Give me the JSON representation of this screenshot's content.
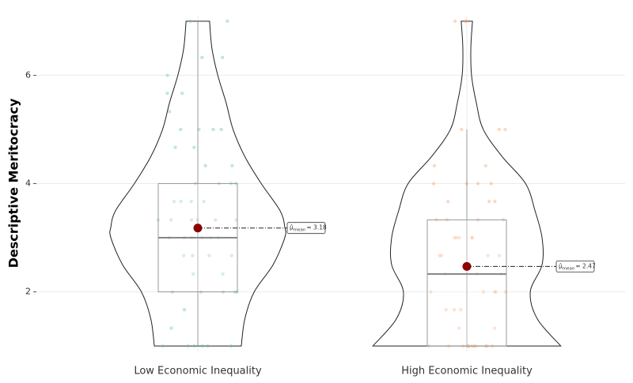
{
  "chart_data": {
    "type": "violin",
    "ylabel": "Descriptive Meritocracy",
    "ylim": [
      0.9,
      7.1
    ],
    "yticks": [
      2,
      4,
      6
    ],
    "grid": true,
    "categories": [
      "Low Economic Inequality",
      "High Economic Inequality"
    ],
    "mean_symbol": "μ̂",
    "mean_subscript": "mean",
    "groups": [
      {
        "color": "#66c2a5",
        "points": [
          1,
          1,
          1,
          1,
          1,
          1,
          1.33,
          1.67,
          2,
          2,
          2,
          2,
          2,
          2.33,
          2.33,
          2.67,
          2.67,
          2.67,
          2.67,
          3,
          3,
          3,
          3,
          3,
          3,
          3.33,
          3.33,
          3.33,
          3.33,
          3.33,
          3.33,
          3.67,
          3.67,
          3.67,
          3.67,
          4,
          4,
          4,
          4,
          4.33,
          4.33,
          4.67,
          4.67,
          5,
          5,
          5,
          5,
          5.33,
          5.67,
          5.67,
          6,
          6.33,
          6.33,
          7,
          7
        ],
        "box": {
          "min": 1,
          "q1": 2,
          "median": 3,
          "q3": 4,
          "max": 7
        },
        "mean": 3.18,
        "mean_label": "= 3.18",
        "violin": {
          "y": [
            1,
            1.5,
            2,
            2.5,
            3,
            3.2,
            3.5,
            4,
            4.5,
            5,
            5.5,
            6,
            6.5,
            7
          ],
          "density": [
            0.185,
            0.2,
            0.24,
            0.32,
            0.37,
            0.37,
            0.35,
            0.27,
            0.2,
            0.15,
            0.12,
            0.085,
            0.06,
            0.05
          ]
        }
      },
      {
        "color": "#f4a06a",
        "points": [
          1,
          1,
          1,
          1,
          1,
          1,
          1,
          1,
          1,
          1,
          1,
          1,
          1.33,
          1.33,
          1.67,
          1.67,
          1.67,
          2,
          2,
          2,
          2,
          2,
          2.33,
          2.33,
          2.33,
          2.67,
          2.67,
          2.67,
          2.67,
          3,
          3,
          3,
          3,
          3,
          3.33,
          3.33,
          3.33,
          3.33,
          3.67,
          3.67,
          3.67,
          4,
          4,
          4,
          4,
          4.33,
          4.33,
          5,
          5,
          5,
          7,
          7,
          7
        ],
        "box": {
          "min": 1,
          "q1": 1,
          "median": 2.33,
          "q3": 3.33,
          "max": 5
        },
        "mean": 2.47,
        "mean_label": "= 2.47",
        "violin": {
          "y": [
            1,
            1.5,
            2,
            2.5,
            3,
            3.5,
            4,
            4.5,
            5,
            5.5,
            6,
            6.5,
            7
          ],
          "density": [
            0.4,
            0.3,
            0.27,
            0.32,
            0.32,
            0.29,
            0.25,
            0.15,
            0.07,
            0.04,
            0.02,
            0.017,
            0.024
          ]
        }
      }
    ]
  }
}
